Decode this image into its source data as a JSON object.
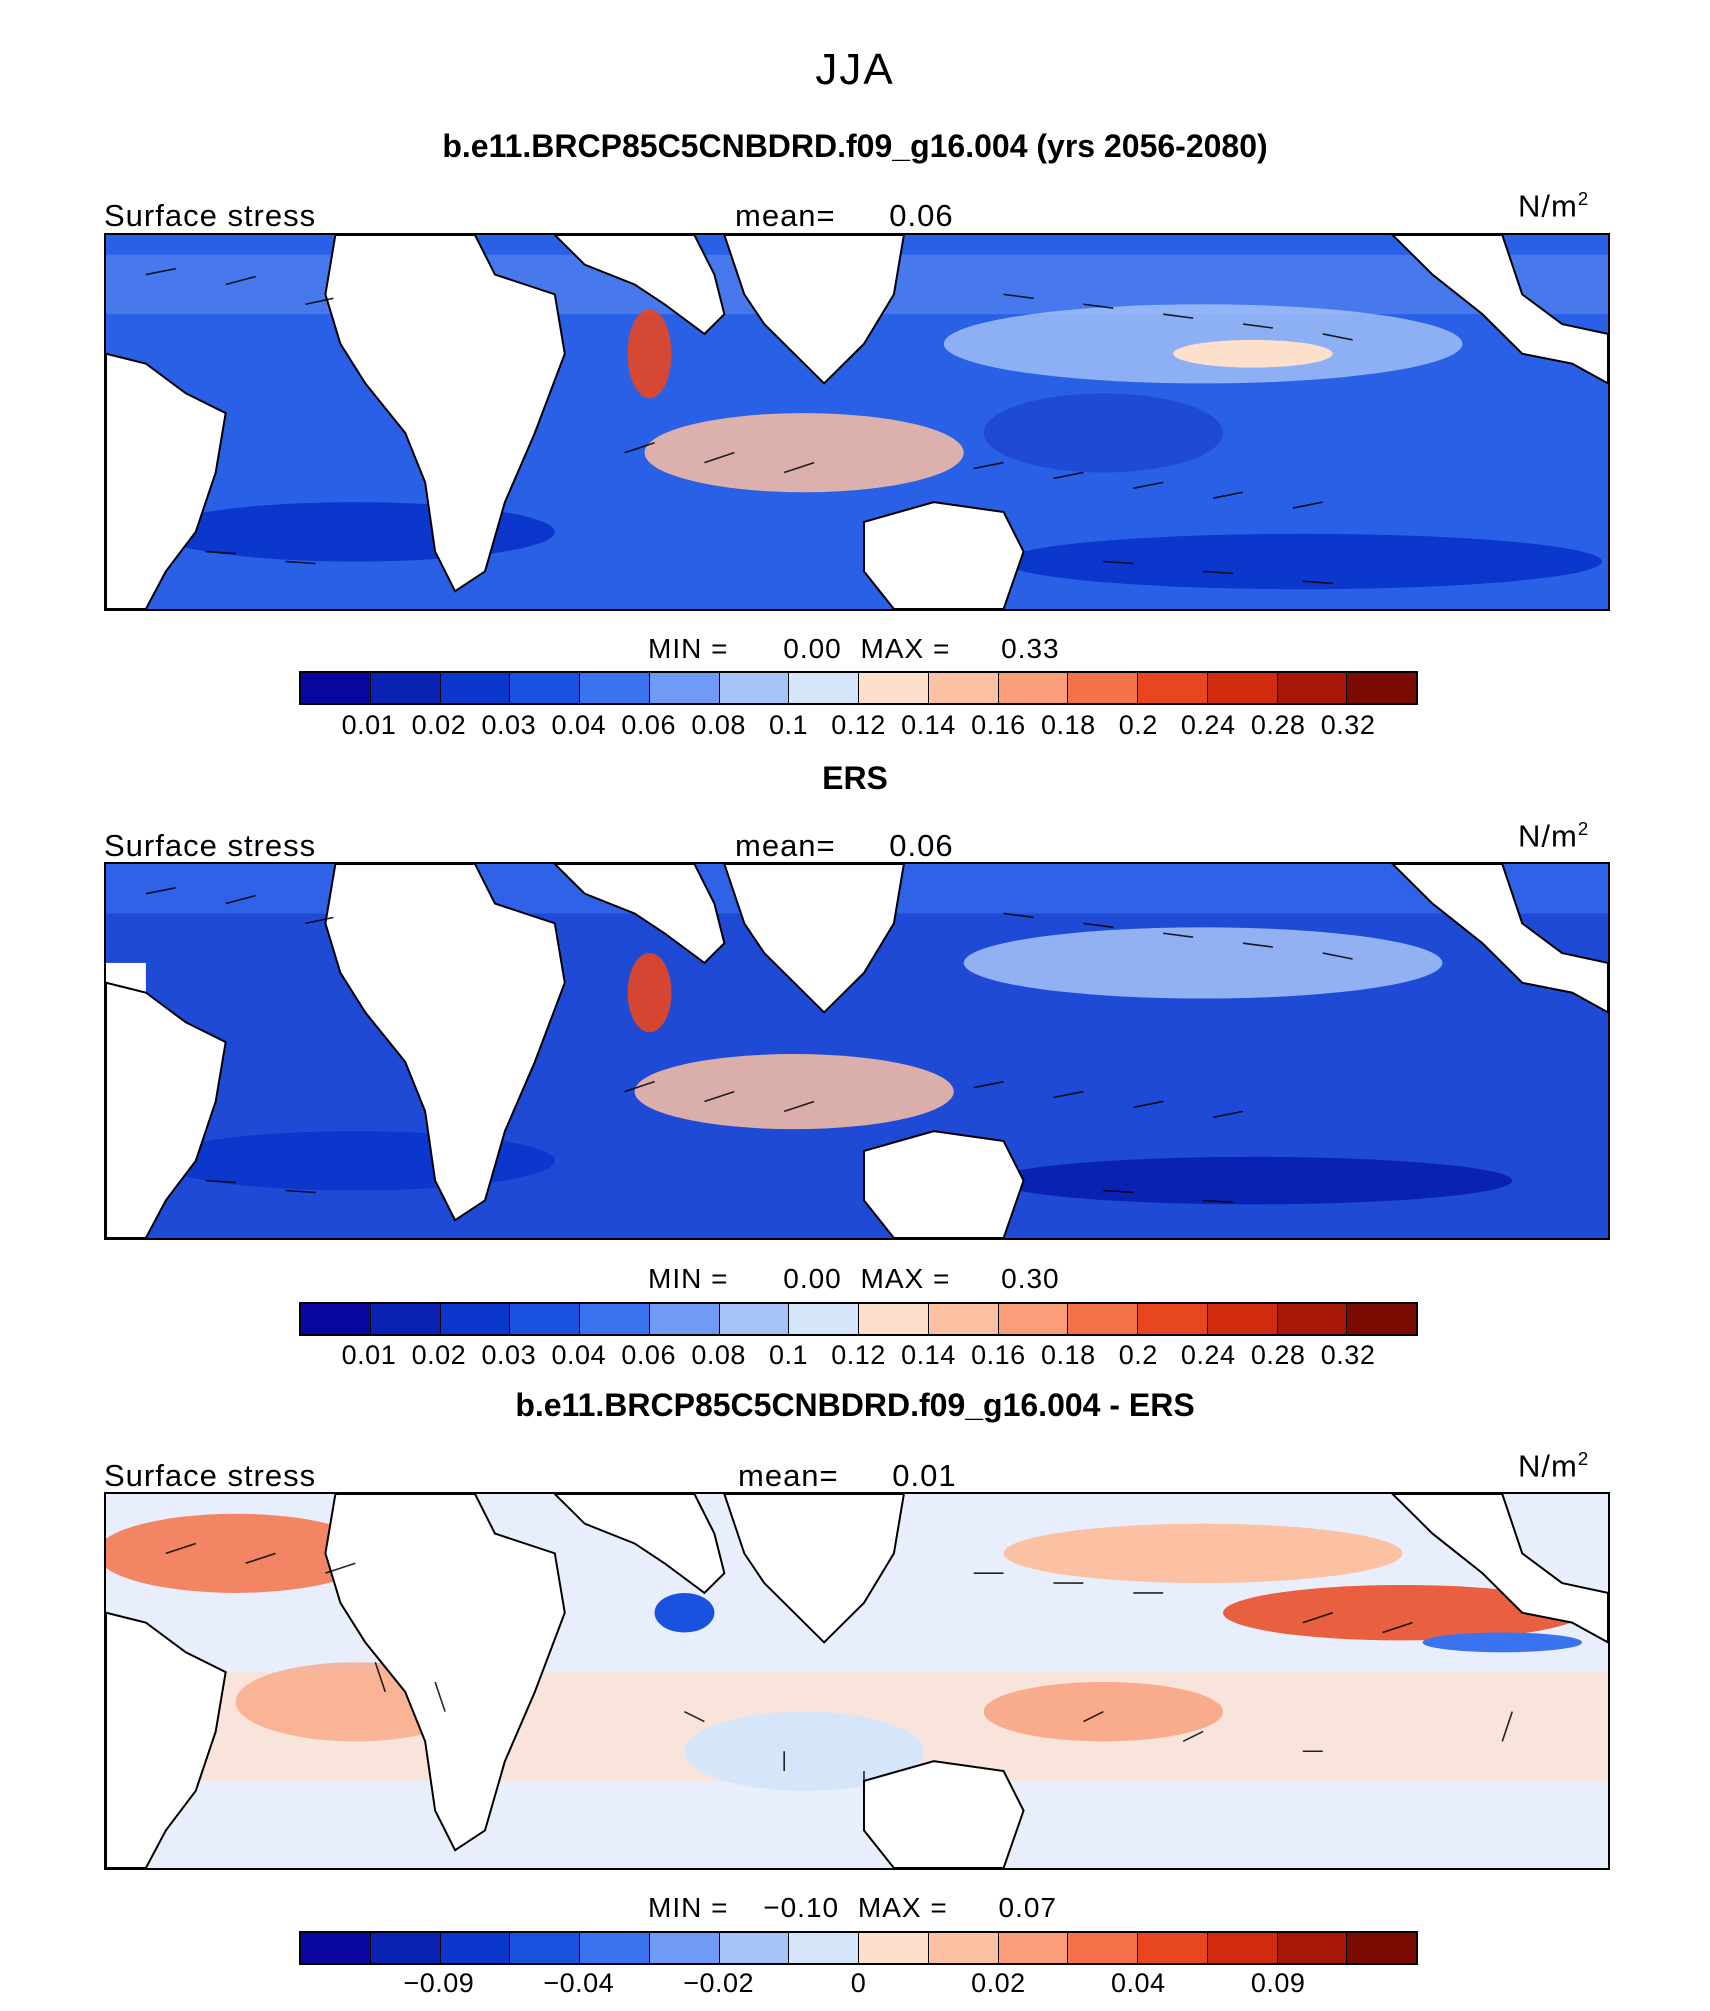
{
  "season": "JJA",
  "panels": [
    {
      "title": "b.e11.BRCP85C5CNBDRD.f09_g16.004 (yrs 2056-2080)",
      "field_label": "Surface stress",
      "mean_label": "mean=",
      "mean_value": "0.06",
      "units": "N/m",
      "units_sup": "2",
      "min_label": "MIN =",
      "min_value": "0.00",
      "max_label": "MAX =",
      "max_value": "0.33",
      "tick_labels": [
        "0.01",
        "0.02",
        "0.03",
        "0.04",
        "0.06",
        "0.08",
        "0.1",
        "0.12",
        "0.14",
        "0.16",
        "0.18",
        "0.2",
        "0.24",
        "0.28",
        "0.32"
      ],
      "tick_positions": [
        1,
        2,
        3,
        4,
        5,
        6,
        7,
        8,
        9,
        10,
        11,
        12,
        13,
        14,
        15
      ]
    },
    {
      "title": "ERS",
      "field_label": "Surface stress",
      "mean_label": "mean=",
      "mean_value": "0.06",
      "units": "N/m",
      "units_sup": "2",
      "min_label": "MIN =",
      "min_value": "0.00",
      "max_label": "MAX =",
      "max_value": "0.30",
      "tick_labels": [
        "0.01",
        "0.02",
        "0.03",
        "0.04",
        "0.06",
        "0.08",
        "0.1",
        "0.12",
        "0.14",
        "0.16",
        "0.18",
        "0.2",
        "0.24",
        "0.28",
        "0.32"
      ],
      "tick_positions": [
        1,
        2,
        3,
        4,
        5,
        6,
        7,
        8,
        9,
        10,
        11,
        12,
        13,
        14,
        15
      ]
    },
    {
      "title": "b.e11.BRCP85C5CNBDRD.f09_g16.004 - ERS",
      "field_label": "Surface stress",
      "mean_label": "mean=",
      "mean_value": "0.01",
      "units": "N/m",
      "units_sup": "2",
      "min_label": "MIN =",
      "min_value": "−0.10",
      "max_label": "MAX =",
      "max_value": "0.07",
      "tick_labels": [
        "−0.09",
        "−0.04",
        "−0.02",
        "0",
        "0.02",
        "0.04",
        "0.09"
      ],
      "tick_positions": [
        2,
        4,
        6,
        8,
        10,
        12,
        14
      ]
    }
  ],
  "colorbar_colors": [
    "#08069e",
    "#0a22b4",
    "#0b37cc",
    "#1a52e0",
    "#3a73f0",
    "#6f9af5",
    "#a6c3f7",
    "#d5e6fb",
    "#fde0cc",
    "#fcc0a2",
    "#f99e78",
    "#f47249",
    "#e8461f",
    "#d02a0f",
    "#a81808",
    "#7a0a02"
  ],
  "map_styles": {
    "ocean_fill_1": "#2a60e6",
    "ocean_fill_2": "#1f4ad6",
    "land_color": "#ffffff",
    "diff_fill": "#e9eefc"
  }
}
